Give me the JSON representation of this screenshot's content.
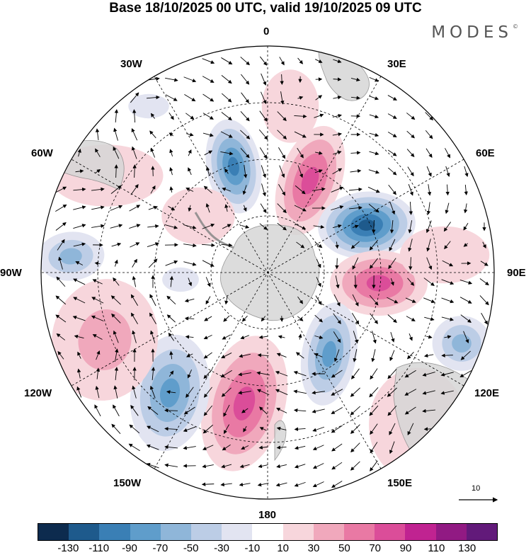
{
  "title": "Base 18/10/2025 00 UTC, valid 19/10/2025 09 UTC",
  "brand": "MODES",
  "brand_mark": "©",
  "longitude_labels": {
    "lon_0": "0",
    "lon_30e": "30E",
    "lon_60e": "60E",
    "lon_90e": "90E",
    "lon_120e": "120E",
    "lon_150e": "150E",
    "lon_180": "180",
    "lon_150w": "150W",
    "lon_120w": "120W",
    "lon_90w": "90W",
    "lon_60w": "60W",
    "lon_30w": "30W"
  },
  "reference_vector": "10",
  "colorbar": {
    "colors": [
      "#0d2b4e",
      "#1e5a8c",
      "#3a7fb5",
      "#5f9dcb",
      "#8fb6d9",
      "#bccde6",
      "#e2e4f1",
      "#ffffff",
      "#f7d6dc",
      "#f0a8bc",
      "#e979a4",
      "#db4d99",
      "#c02391",
      "#911a83",
      "#621a7a"
    ],
    "ticks": [
      "-130",
      "-110",
      "-90",
      "-70",
      "-50",
      "-30",
      "-10",
      "10",
      "30",
      "50",
      "70",
      "90",
      "110",
      "130"
    ]
  }
}
